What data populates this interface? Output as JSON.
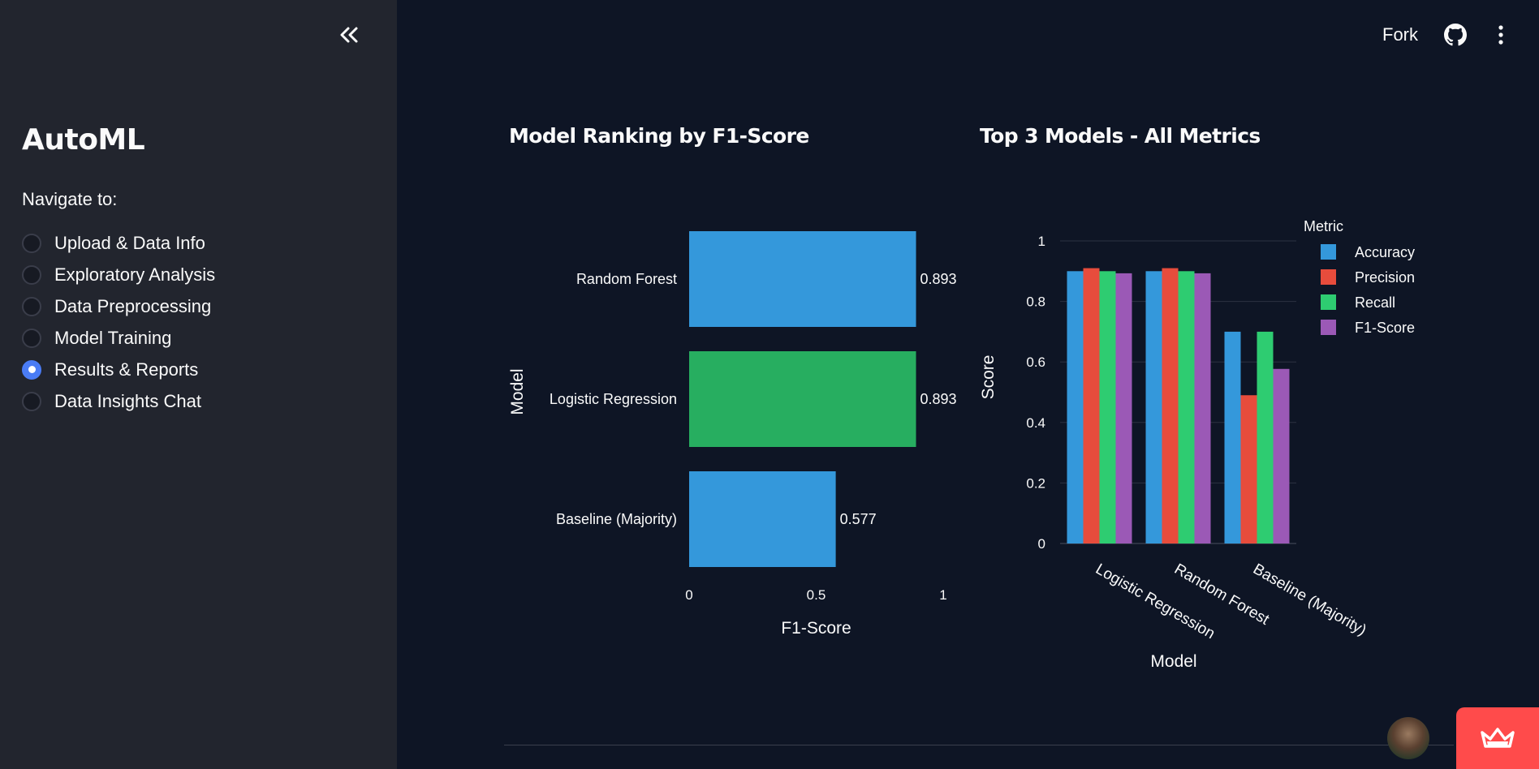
{
  "sidebar": {
    "app_title": "AutoML",
    "nav_label": "Navigate to:",
    "items": [
      {
        "label": "Upload & Data Info",
        "selected": false
      },
      {
        "label": "Exploratory Analysis",
        "selected": false
      },
      {
        "label": "Data Preprocessing",
        "selected": false
      },
      {
        "label": "Model Training",
        "selected": false
      },
      {
        "label": "Results & Reports",
        "selected": true
      },
      {
        "label": "Data Insights Chat",
        "selected": false
      }
    ]
  },
  "header": {
    "fork_label": "Fork",
    "icons": [
      "double-chevron-left-icon",
      "github-icon",
      "kebab-menu-icon"
    ]
  },
  "colors": {
    "accent": "#4a7cf5",
    "blue": "#3498db",
    "green": "#27ae60",
    "red": "#e74c3c",
    "bright_green": "#2ecc71",
    "purple": "#9b59b6",
    "badge": "#ff4b4b"
  },
  "chart_data": [
    {
      "type": "bar",
      "orientation": "horizontal",
      "title": "Model Ranking by F1-Score",
      "xlabel": "F1-Score",
      "ylabel": "Model",
      "categories": [
        "Random Forest",
        "Logistic Regression",
        "Baseline (Majority)"
      ],
      "values": [
        0.893,
        0.893,
        0.577
      ],
      "value_labels": [
        "0.893",
        "0.893",
        "0.577"
      ],
      "bar_colors": [
        "#3498db",
        "#27ae60",
        "#3498db"
      ],
      "xlim": [
        0,
        1
      ],
      "xticks": [
        "0",
        "0.5",
        "1"
      ],
      "grid": false
    },
    {
      "type": "bar",
      "title": "Top 3 Models - All Metrics",
      "xlabel": "Model",
      "ylabel": "Score",
      "categories": [
        "Logistic Regression",
        "Random Forest",
        "Baseline (Majority)"
      ],
      "series": [
        {
          "name": "Accuracy",
          "color": "#3498db",
          "values": [
            0.9,
            0.9,
            0.7
          ]
        },
        {
          "name": "Precision",
          "color": "#e74c3c",
          "values": [
            0.91,
            0.91,
            0.49
          ]
        },
        {
          "name": "Recall",
          "color": "#2ecc71",
          "values": [
            0.9,
            0.9,
            0.7
          ]
        },
        {
          "name": "F1-Score",
          "color": "#9b59b6",
          "values": [
            0.893,
            0.893,
            0.577
          ]
        }
      ],
      "legend_title": "Metric",
      "legend_position": "right",
      "ylim": [
        0,
        1
      ],
      "yticks": [
        "0",
        "0.2",
        "0.4",
        "0.6",
        "0.8",
        "1"
      ],
      "grid": true
    }
  ]
}
